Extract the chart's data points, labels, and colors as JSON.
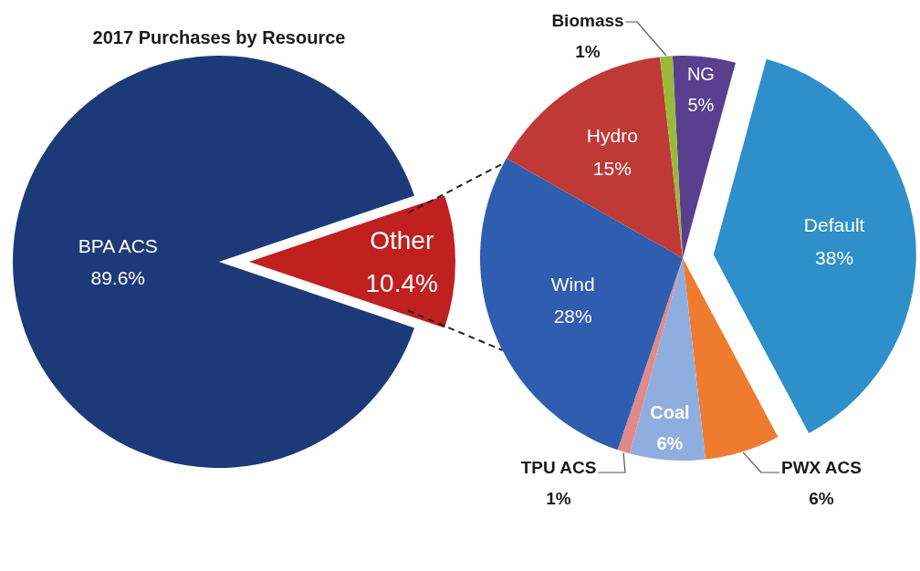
{
  "chart_data": [
    {
      "type": "pie",
      "title": "2017 Purchases by Resource",
      "categories": [
        "BPA ACS",
        "Other"
      ],
      "values": [
        89.6,
        10.4
      ],
      "colors": [
        "#1d3a78",
        "#c0201f"
      ],
      "value_labels": [
        "89.6%",
        "10.4%"
      ]
    },
    {
      "type": "pie",
      "categories": [
        "NG",
        "Default",
        "PWX ACS",
        "Coal",
        "TPU ACS",
        "Wind",
        "Hydro",
        "Biomass"
      ],
      "values": [
        5,
        38,
        6,
        6,
        1,
        28,
        15,
        1
      ],
      "colors": [
        "#5a3f8f",
        "#2e8fca",
        "#ef7b2f",
        "#8eaee0",
        "#e08b8b",
        "#2f5db0",
        "#bf3a36",
        "#9ab93a"
      ],
      "value_labels": [
        "5%",
        "38%",
        "6%",
        "6%",
        "1%",
        "28%",
        "15%",
        "1%"
      ]
    }
  ]
}
